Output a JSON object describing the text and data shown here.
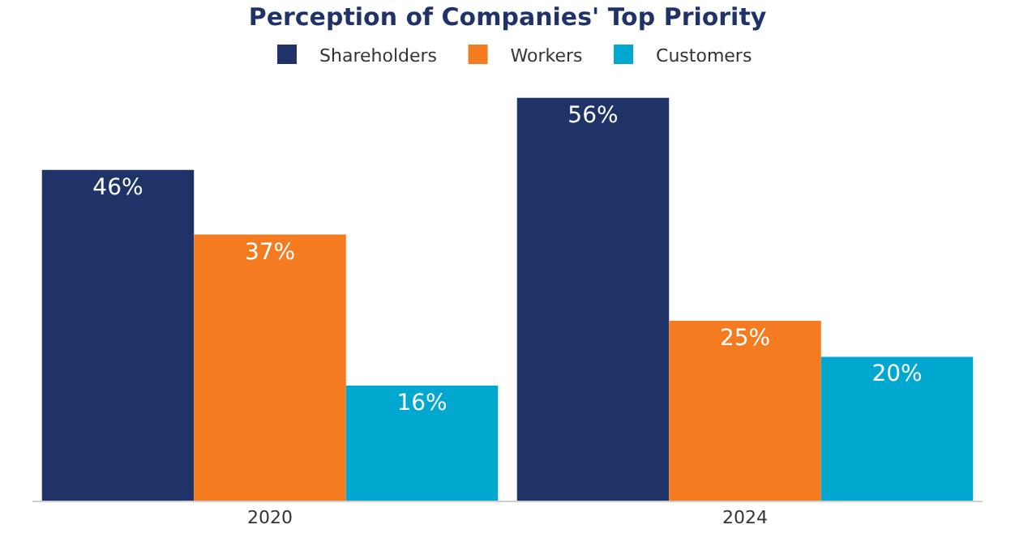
{
  "chart_data": {
    "type": "bar",
    "title": "Perception of Companies' Top Priority",
    "categories": [
      "2020",
      "2024"
    ],
    "series": [
      {
        "name": "Shareholders",
        "color": "#1f3368",
        "values": [
          46,
          56
        ],
        "value_labels": [
          "46%",
          "56%"
        ]
      },
      {
        "name": "Workers",
        "color": "#f47b20",
        "values": [
          37,
          25
        ],
        "value_labels": [
          "37%",
          "25%"
        ]
      },
      {
        "name": "Customers",
        "color": "#00a8d0",
        "values": [
          16,
          20
        ],
        "value_labels": [
          "16%",
          "20%"
        ]
      }
    ],
    "legend": "top"
  }
}
